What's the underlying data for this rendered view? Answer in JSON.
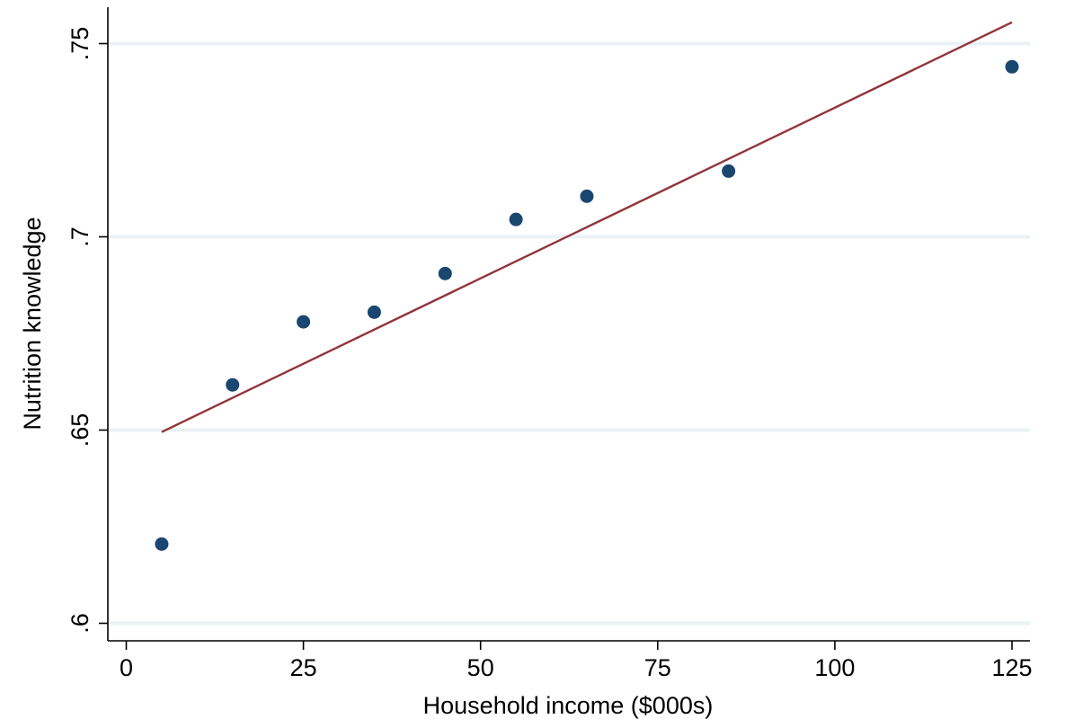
{
  "chart_data": {
    "type": "scatter",
    "title": "",
    "xlabel": "Household income ($000s)",
    "ylabel": "Nutrition knowledge",
    "xlim": [
      0,
      125
    ],
    "ylim": [
      0.6,
      0.75
    ],
    "x_ticks": [
      0,
      25,
      50,
      75,
      100,
      125
    ],
    "x_tick_labels": [
      "0",
      "25",
      "50",
      "75",
      "100",
      "125"
    ],
    "y_ticks": [
      0.6,
      0.65,
      0.7,
      0.75
    ],
    "y_tick_labels": [
      ".6",
      ".65",
      ".7",
      ".75"
    ],
    "grid": "horizontal",
    "legend": "none",
    "series": [
      {
        "type": "scatter",
        "color": "#1a476f",
        "x": [
          5,
          15,
          25,
          35,
          45,
          55,
          65,
          85,
          125
        ],
        "y": [
          0.6205,
          0.6617,
          0.678,
          0.6805,
          0.6905,
          0.7045,
          0.7105,
          0.717,
          0.744
        ]
      },
      {
        "type": "line",
        "color": "#90353b",
        "x": [
          5,
          125
        ],
        "y": [
          0.6495,
          0.7555
        ]
      }
    ],
    "colors": {
      "grid": "#eaf2f3",
      "axis": "#000000"
    }
  }
}
